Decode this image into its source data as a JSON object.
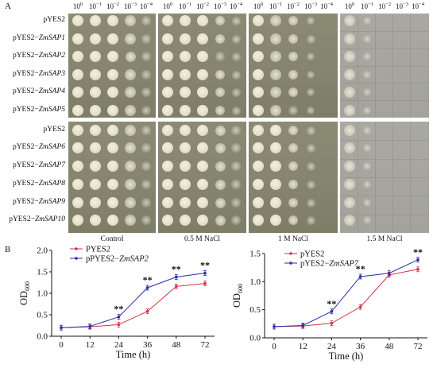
{
  "panel_a": {
    "letter": "A",
    "dilution_base": "10",
    "dilution_exponents": [
      "0",
      "−1",
      "−2",
      "−3",
      "−4"
    ],
    "groups": [
      {
        "rows": [
          {
            "prefix": "pYES2",
            "gene": ""
          },
          {
            "prefix": "pYES2−",
            "gene": "ZmSAP1"
          },
          {
            "prefix": "pYES2−",
            "gene": "ZmSAP2"
          },
          {
            "prefix": "pYES2−",
            "gene": "ZmSAP3"
          },
          {
            "prefix": "pYES2−",
            "gene": "ZmSAP4"
          },
          {
            "prefix": "pYES2−",
            "gene": "ZmSAP5"
          }
        ]
      },
      {
        "rows": [
          {
            "prefix": "pYES2",
            "gene": ""
          },
          {
            "prefix": "pYES2−",
            "gene": "ZmSAP6"
          },
          {
            "prefix": "pYES2−",
            "gene": "ZmSAP7"
          },
          {
            "prefix": "pYES2−",
            "gene": "ZmSAP8"
          },
          {
            "prefix": "pYES2−",
            "gene": "ZmSAP9"
          },
          {
            "prefix": "pYES2−",
            "gene": "ZmSAP10"
          }
        ]
      }
    ],
    "conditions": [
      "Control",
      "0.5 M NaCl",
      "1 M NaCl",
      "1.5 M NaCl"
    ]
  },
  "panel_b": {
    "letter": "B"
  },
  "chart_data": [
    {
      "type": "line",
      "title": "",
      "xlabel": "Time (h)",
      "ylabel": "OD600",
      "ylabel_main": "OD",
      "ylabel_sub": "600",
      "x": [
        0,
        12,
        24,
        36,
        48,
        72
      ],
      "x_ticks": [
        "0",
        "12",
        "24",
        "36",
        "48",
        "72"
      ],
      "y_ticks": [
        "0.0",
        "0.5",
        "1.0",
        "1.5",
        "2.0"
      ],
      "ylim": [
        0,
        2.0
      ],
      "legend_position": "top-left",
      "series": [
        {
          "name": "PYES2",
          "name_gene": "",
          "values": [
            0.2,
            0.22,
            0.27,
            0.58,
            1.16,
            1.23
          ],
          "color": "#d9304a"
        },
        {
          "name": "pPYES2−ZmSAP2",
          "name_prefix": "pPYES2−",
          "name_gene": "ZmSAP2",
          "values": [
            0.2,
            0.23,
            0.45,
            1.13,
            1.38,
            1.47
          ],
          "color": "#2b2fa8"
        }
      ],
      "annotations": [
        {
          "x": 24,
          "y": 0.45,
          "text": "**"
        },
        {
          "x": 36,
          "y": 1.13,
          "text": "**"
        },
        {
          "x": 48,
          "y": 1.38,
          "text": "**"
        },
        {
          "x": 72,
          "y": 1.47,
          "text": "**"
        }
      ]
    },
    {
      "type": "line",
      "title": "",
      "xlabel": "Time (h)",
      "ylabel": "OD600",
      "ylabel_main": "OD",
      "ylabel_sub": "600",
      "x": [
        0,
        12,
        24,
        36,
        48,
        72
      ],
      "x_ticks": [
        "0",
        "12",
        "24",
        "36",
        "48",
        "72"
      ],
      "y_ticks": [
        "0.0",
        "0.5",
        "1.0",
        "1.5"
      ],
      "ylim": [
        0,
        1.5
      ],
      "legend_position": "top-left",
      "series": [
        {
          "name": "pYES2",
          "name_gene": "",
          "values": [
            0.2,
            0.21,
            0.26,
            0.55,
            1.12,
            1.22
          ],
          "color": "#d9304a"
        },
        {
          "name": "pYES2−ZmSAP7",
          "name_prefix": "pYES2−",
          "name_gene": "ZmSAP7",
          "values": [
            0.2,
            0.22,
            0.47,
            1.09,
            1.15,
            1.39
          ],
          "color": "#2b2fa8"
        }
      ],
      "annotations": [
        {
          "x": 24,
          "y": 0.47,
          "text": "**"
        },
        {
          "x": 36,
          "y": 1.09,
          "text": "**"
        },
        {
          "x": 72,
          "y": 1.39,
          "text": "**"
        }
      ]
    }
  ]
}
